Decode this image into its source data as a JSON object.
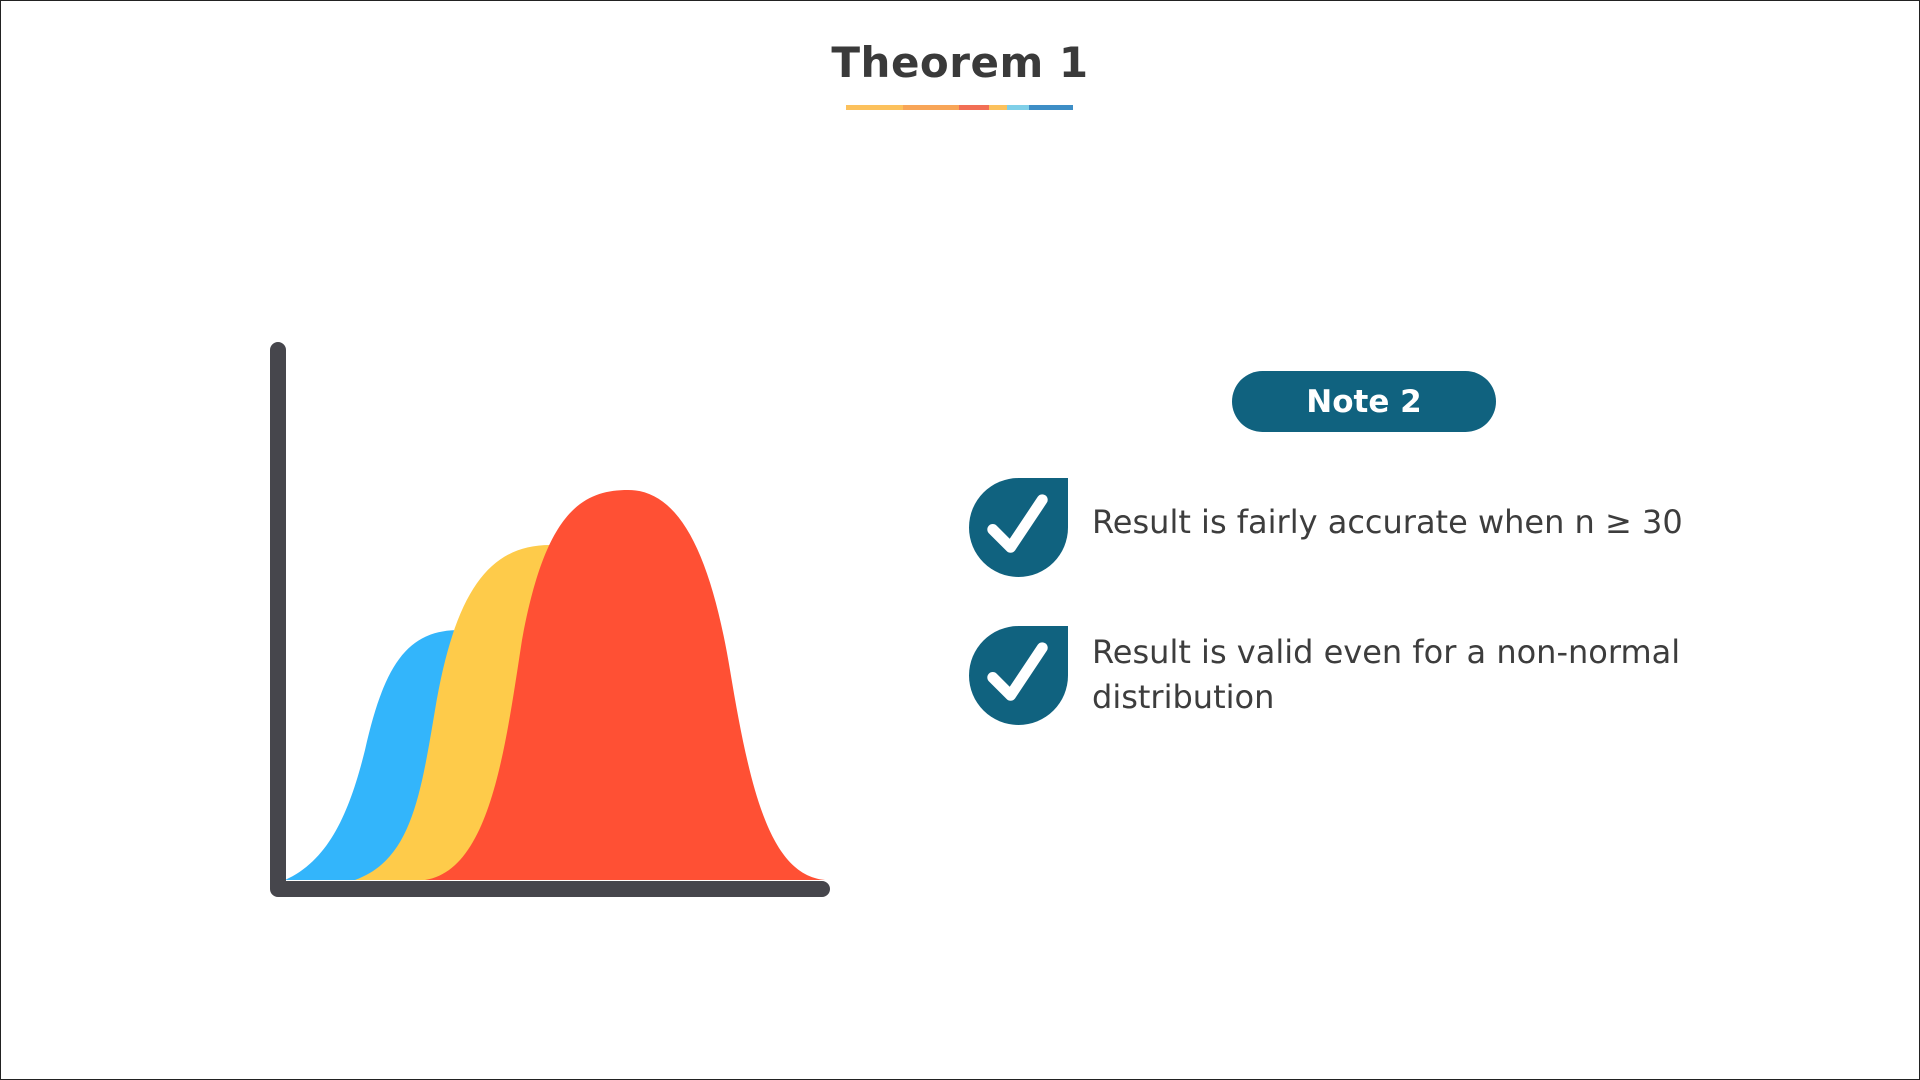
{
  "title": "Theorem 1",
  "title_underline_colors": [
    "#fcc15c",
    "#f8a557",
    "#f26f55",
    "#fcc15c",
    "#7fcfe8",
    "#3d8ec6"
  ],
  "chart": {
    "curve_colors": {
      "blue": "#33b5fb",
      "yellow": "#fecb4a",
      "red": "#ff5034"
    },
    "axis_color": "#46464c"
  },
  "note": {
    "label": "Note 2",
    "color": "#10627f"
  },
  "checks": [
    {
      "icon": "checkmark-icon",
      "text": "Result is fairly accurate when n ≥ 30"
    },
    {
      "icon": "checkmark-icon",
      "text": "Result is valid even for a non-normal distribution"
    }
  ]
}
